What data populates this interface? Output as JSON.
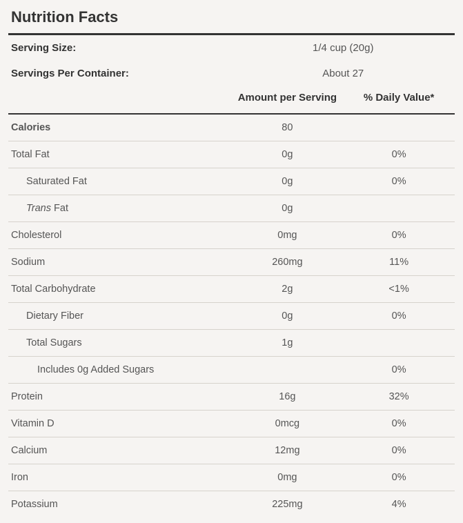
{
  "title": "Nutrition Facts",
  "servings": {
    "size_label": "Serving Size:",
    "size_value": "1/4 cup (20g)",
    "per_label": "Servings Per Container:",
    "per_value": "About 27"
  },
  "headers": {
    "amount": "Amount per Serving",
    "dv": "% Daily Value*"
  },
  "rows": [
    {
      "name": "Calories",
      "amount": "80",
      "dv": "",
      "bold": true,
      "indent": 0
    },
    {
      "name": "Total Fat",
      "amount": "0g",
      "dv": "0%",
      "indent": 0
    },
    {
      "name": "Saturated Fat",
      "amount": "0g",
      "dv": "0%",
      "indent": 1
    },
    {
      "name_html": "<span class='italic'>Trans</span> Fat",
      "amount": "0g",
      "dv": "",
      "indent": 1
    },
    {
      "name": "Cholesterol",
      "amount": "0mg",
      "dv": "0%",
      "indent": 0
    },
    {
      "name": "Sodium",
      "amount": "260mg",
      "dv": "11%",
      "indent": 0
    },
    {
      "name": "Total Carbohydrate",
      "amount": "2g",
      "dv": "<1%",
      "indent": 0
    },
    {
      "name": "Dietary Fiber",
      "amount": "0g",
      "dv": "0%",
      "indent": 1
    },
    {
      "name": "Total Sugars",
      "amount": "1g",
      "dv": "",
      "indent": 1
    },
    {
      "name": "Includes 0g Added Sugars",
      "amount": "",
      "dv": "0%",
      "indent": 2
    },
    {
      "name": "Protein",
      "amount": "16g",
      "dv": "32%",
      "indent": 0
    },
    {
      "name": "Vitamin D",
      "amount": "0mcg",
      "dv": "0%",
      "indent": 0
    },
    {
      "name": "Calcium",
      "amount": "12mg",
      "dv": "0%",
      "indent": 0
    },
    {
      "name": "Iron",
      "amount": "0mg",
      "dv": "0%",
      "indent": 0
    },
    {
      "name": "Potassium",
      "amount": "225mg",
      "dv": "4%",
      "indent": 0
    }
  ]
}
